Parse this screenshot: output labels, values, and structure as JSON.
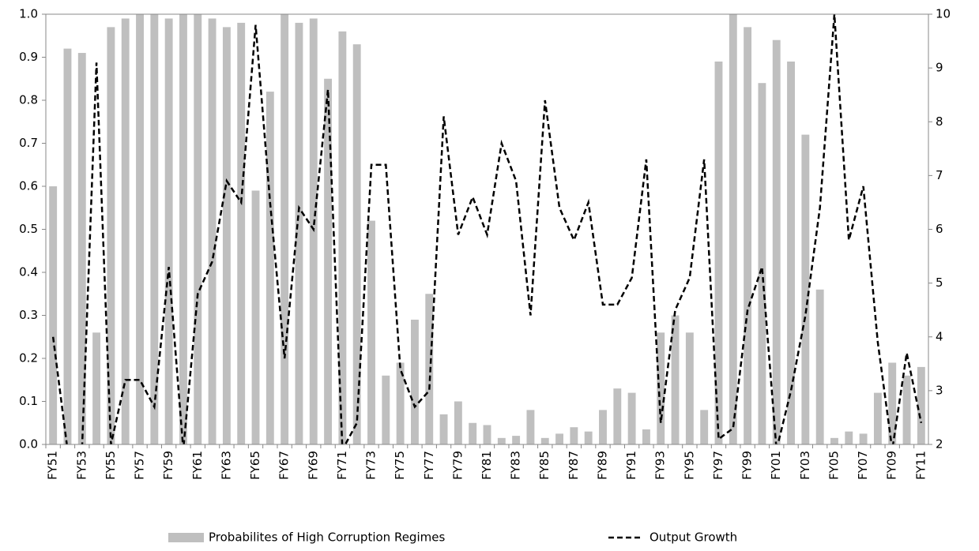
{
  "chart_data": {
    "type": "bar_line",
    "categories": [
      "FY51",
      null,
      "FY53",
      null,
      "FY55",
      null,
      "FY57",
      null,
      "FY59",
      null,
      "FY61",
      null,
      "FY63",
      null,
      "FY65",
      null,
      "FY67",
      null,
      "FY69",
      null,
      "FY71",
      null,
      "FY73",
      null,
      "FY75",
      null,
      "FY77",
      null,
      "FY79",
      null,
      "FY81",
      null,
      "FY83",
      null,
      "FY85",
      null,
      "FY87",
      null,
      "FY89",
      null,
      "FY91",
      null,
      "FY93",
      null,
      "FY95",
      null,
      "FY97",
      null,
      "FY99",
      null,
      "FY01",
      null,
      "FY03",
      null,
      "FY05",
      null,
      "FY07",
      null,
      "FY09",
      null,
      "FY11"
    ],
    "series": [
      {
        "name": "Probabilites of High Corruption Regimes",
        "type": "bar",
        "color": "#bfbfbf",
        "values": [
          0.6,
          0.92,
          0.91,
          0.26,
          0.97,
          0.99,
          1.0,
          1.0,
          0.99,
          1.0,
          1.0,
          0.99,
          0.97,
          0.98,
          0.59,
          0.82,
          1.0,
          0.98,
          0.99,
          0.85,
          0.96,
          0.93,
          0.52,
          0.16,
          0.19,
          0.29,
          0.35,
          0.07,
          0.1,
          0.05,
          0.045,
          0.015,
          0.02,
          0.08,
          0.015,
          0.025,
          0.04,
          0.03,
          0.08,
          0.13,
          0.12,
          0.035,
          0.26,
          0.3,
          0.26,
          0.08,
          0.89,
          1.0,
          0.97,
          0.84,
          0.94,
          0.89,
          0.72,
          0.36,
          0.015,
          0.03,
          0.025,
          0.12,
          0.19,
          0.16,
          0.18
        ]
      },
      {
        "name": "Output Growth",
        "type": "line",
        "axis": "y2",
        "color": "#000000",
        "dashed": true,
        "values": [
          4.0,
          1.9,
          1.9,
          9.1,
          2.0,
          3.2,
          3.2,
          2.7,
          5.3,
          1.9,
          4.8,
          5.4,
          6.9,
          6.5,
          9.8,
          6.5,
          3.6,
          6.4,
          6.0,
          8.6,
          1.9,
          2.4,
          7.2,
          7.2,
          3.4,
          2.7,
          3.0,
          8.1,
          5.9,
          6.6,
          5.9,
          7.6,
          6.9,
          4.4,
          8.4,
          6.4,
          5.8,
          6.5,
          4.6,
          4.6,
          5.1,
          7.3,
          2.4,
          4.5,
          5.1,
          7.3,
          2.1,
          2.3,
          4.5,
          5.3,
          1.9,
          3.0,
          4.4,
          6.4,
          10.0,
          5.8,
          6.8,
          3.9,
          1.9,
          3.7,
          2.4
        ]
      }
    ],
    "ylim": [
      0,
      1
    ],
    "yticks": [
      {
        "value": 0,
        "label": "0.0"
      },
      0.1,
      0.2,
      0.3,
      0.4,
      0.5,
      0.6,
      0.7,
      0.8,
      0.9,
      {
        "value": 1,
        "label": "1.0"
      }
    ],
    "y2lim": [
      2,
      10
    ],
    "y2ticks": [
      2,
      3,
      4,
      5,
      6,
      7,
      8,
      9,
      10
    ],
    "legend": "bottom"
  }
}
